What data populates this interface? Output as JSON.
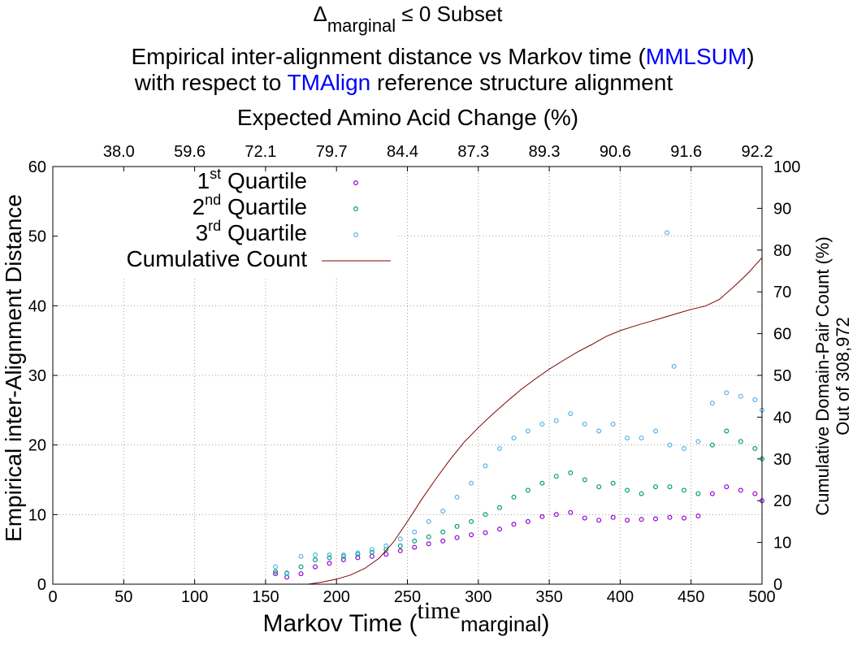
{
  "header": {
    "subset_delta": "Δ",
    "subset_sub": "marginal",
    "subset_rest": " ≤ 0 Subset",
    "title_line1_a": "Empirical inter-alignment distance vs Markov time (",
    "title_line1_b": "MMLSUM",
    "title_line1_c": ")",
    "title_line2_a": "with respect to ",
    "title_line2_b": "TMAlign",
    "title_line2_c": " reference structure alignment"
  },
  "colors": {
    "q1": "#9400d3",
    "q2": "#009e73",
    "q3": "#56b4e9",
    "cumulative": "#800000",
    "link_blue": "#0000ff",
    "grid": "#a0a0a0"
  },
  "chart_data": {
    "type": "scatter",
    "title": "Empirical inter-alignment distance vs Markov time (MMLSUM) with respect to TMAlign reference structure alignment",
    "xlabel_main": "Markov Time (",
    "xlabel_var": "time",
    "xlabel_sub": "marginal",
    "xlabel_close": ")",
    "ylabel": "Empirical inter-Alignment Distance",
    "y2label_line1": "Cumulative Domain-Pair Count (%)",
    "y2label_line2": "Out of 308,972",
    "x2label": "Expected Amino Acid Change (%)",
    "xlim": [
      0,
      500
    ],
    "ylim": [
      0,
      60
    ],
    "y2lim": [
      0,
      100
    ],
    "x_ticks": [
      "0",
      "50",
      "100",
      "150",
      "200",
      "250",
      "300",
      "350",
      "400",
      "450",
      "500"
    ],
    "y_ticks": [
      "0",
      "10",
      "20",
      "30",
      "40",
      "50",
      "60"
    ],
    "y2_ticks": [
      "0",
      "10",
      "20",
      "30",
      "40",
      "50",
      "60",
      "70",
      "80",
      "90",
      "100"
    ],
    "x2_ticks": [
      "38.0",
      "59.6",
      "72.1",
      "79.7",
      "84.4",
      "87.3",
      "89.3",
      "90.6",
      "91.6",
      "92.2"
    ],
    "grid": true,
    "legend_position": "top-left",
    "legend": [
      {
        "label": "Quartile",
        "ord": "1",
        "sup": "st",
        "kind": "points",
        "color_key": "q1"
      },
      {
        "label": "Quartile",
        "ord": "2",
        "sup": "nd",
        "kind": "points",
        "color_key": "q2"
      },
      {
        "label": "Quartile",
        "ord": "3",
        "sup": "rd",
        "kind": "points",
        "color_key": "q3"
      },
      {
        "label": "Cumulative Count",
        "kind": "line",
        "color_key": "cumulative"
      }
    ],
    "series": [
      {
        "name": "1st Quartile",
        "color_key": "q1",
        "x": [
          157,
          165,
          175,
          185,
          195,
          205,
          215,
          225,
          235,
          245,
          255,
          265,
          275,
          285,
          295,
          305,
          315,
          325,
          335,
          345,
          355,
          365,
          375,
          385,
          395,
          405,
          415,
          425,
          435,
          445,
          455,
          465,
          475,
          485,
          495,
          500
        ],
        "y": [
          1.5,
          1.0,
          1.5,
          2.5,
          3.0,
          3.5,
          3.8,
          4.0,
          4.3,
          4.8,
          5.3,
          5.8,
          6.2,
          6.7,
          7.1,
          7.4,
          7.9,
          8.6,
          9.0,
          9.7,
          10.0,
          10.3,
          9.5,
          9.2,
          9.6,
          9.2,
          9.3,
          9.4,
          9.6,
          9.5,
          9.8,
          13.0,
          14.0,
          13.5,
          13.0,
          12.0
        ]
      },
      {
        "name": "2nd Quartile",
        "color_key": "q2",
        "x": [
          157,
          165,
          175,
          185,
          195,
          205,
          215,
          225,
          235,
          245,
          255,
          265,
          275,
          285,
          295,
          305,
          315,
          325,
          335,
          345,
          355,
          365,
          375,
          385,
          395,
          405,
          415,
          425,
          435,
          445,
          455,
          465,
          475,
          485,
          495,
          500
        ],
        "y": [
          1.8,
          1.6,
          2.5,
          3.5,
          3.8,
          4.0,
          4.3,
          4.6,
          5.0,
          5.5,
          6.2,
          6.8,
          7.5,
          8.3,
          9.0,
          10.0,
          11.0,
          12.5,
          13.5,
          14.5,
          15.5,
          16.0,
          15.0,
          14.0,
          14.5,
          13.5,
          13.0,
          14.0,
          14.0,
          13.5,
          13.0,
          20.0,
          22.0,
          20.5,
          19.5,
          18.0
        ]
      },
      {
        "name": "3rd Quartile",
        "color_key": "q3",
        "x": [
          157,
          165,
          175,
          185,
          195,
          205,
          215,
          225,
          235,
          245,
          255,
          265,
          275,
          285,
          295,
          305,
          315,
          325,
          335,
          345,
          355,
          365,
          375,
          385,
          395,
          405,
          415,
          425,
          435,
          445,
          455,
          465,
          475,
          485,
          495,
          500
        ],
        "y": [
          2.5,
          1.5,
          4.0,
          4.2,
          4.2,
          4.2,
          4.5,
          5.0,
          5.5,
          6.5,
          7.5,
          9.0,
          10.5,
          12.5,
          14.5,
          17.0,
          19.5,
          21.0,
          22.0,
          23.0,
          23.5,
          24.5,
          23.0,
          22.0,
          23.0,
          21.0,
          21.0,
          22.0,
          20.0,
          19.5,
          20.5,
          26.0,
          27.5,
          27.0,
          26.5,
          25.0
        ]
      },
      {
        "name": "Cumulative Count",
        "color_key": "cumulative",
        "axis": "y2",
        "x": [
          180,
          190,
          200,
          210,
          220,
          230,
          240,
          250,
          260,
          270,
          280,
          290,
          300,
          310,
          320,
          330,
          340,
          350,
          360,
          370,
          380,
          390,
          400,
          410,
          420,
          430,
          440,
          450,
          460,
          470,
          480,
          490,
          495,
          500
        ],
        "y": [
          0,
          0.5,
          1.2,
          2.2,
          3.8,
          6.2,
          10.0,
          15.0,
          20.3,
          25.2,
          29.8,
          34.0,
          37.5,
          40.7,
          43.7,
          46.6,
          49.1,
          51.5,
          53.6,
          55.6,
          57.4,
          59.3,
          60.7,
          61.8,
          62.8,
          63.8,
          64.8,
          65.8,
          66.6,
          68.2,
          71.2,
          74.4,
          76.3,
          78.2
        ]
      }
    ],
    "annotations": [
      {
        "kind": "outlier",
        "series": "3rd Quartile",
        "x": 433,
        "y": 50.5
      },
      {
        "kind": "outlier",
        "series": "3rd Quartile",
        "x": 438,
        "y": 31.3
      }
    ]
  }
}
